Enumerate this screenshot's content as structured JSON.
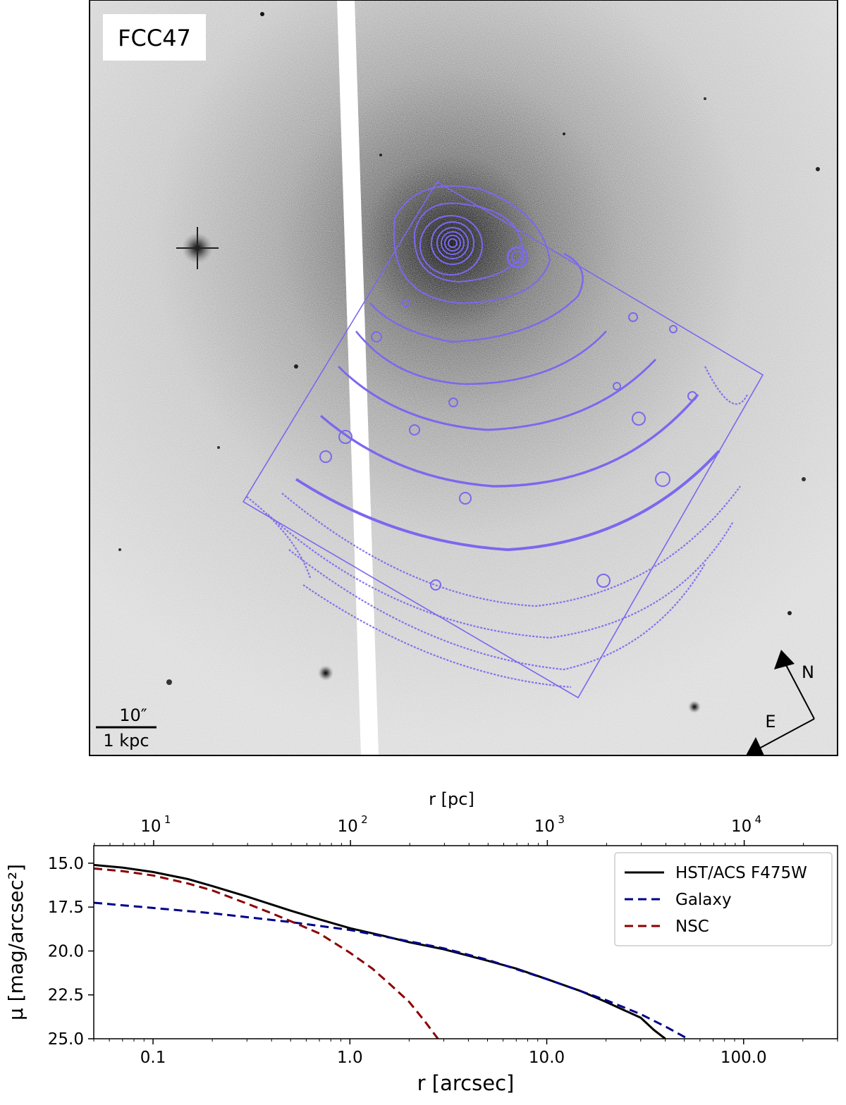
{
  "image_panel": {
    "galaxy_label": "FCC47",
    "scale_bar_top": "10″",
    "scale_bar_bottom": "1 kpc",
    "compass_north": "N",
    "compass_east": "E",
    "contour_color": "#7b68ee"
  },
  "chart_data": {
    "type": "line",
    "xlabel": "r [arcsec]",
    "x2label": "r [pc]",
    "ylabel": "μ [mag/arcsec²]",
    "xscale": "log",
    "xlim": [
      0.05,
      300
    ],
    "ylim": [
      25.0,
      14.0
    ],
    "y_inverted": true,
    "x_ticks": [
      "0.1",
      "1.0",
      "10.0",
      "100.0"
    ],
    "x_tick_values": [
      0.1,
      1,
      10,
      100
    ],
    "x2_tick_values": [
      10,
      100,
      1000,
      10000
    ],
    "x2_ticks": [
      "10",
      "10",
      "10",
      "10"
    ],
    "x2_tick_exponents": [
      "1",
      "2",
      "3",
      "4"
    ],
    "y_ticks": [
      "15.0",
      "17.5",
      "20.0",
      "22.5",
      "25.0"
    ],
    "y_tick_values": [
      15.0,
      17.5,
      20.0,
      22.5,
      25.0
    ],
    "legend_position": "upper-right",
    "series": [
      {
        "name": "HST/ACS F475W",
        "color": "#000000",
        "style": "solid",
        "x": [
          0.05,
          0.07,
          0.1,
          0.15,
          0.2,
          0.3,
          0.5,
          0.7,
          1.0,
          1.5,
          2,
          3,
          5,
          7,
          10,
          15,
          20,
          25,
          30,
          35,
          40
        ],
        "y": [
          15.1,
          15.25,
          15.5,
          15.9,
          16.3,
          16.9,
          17.7,
          18.2,
          18.7,
          19.15,
          19.5,
          19.9,
          20.55,
          21.0,
          21.6,
          22.3,
          22.9,
          23.4,
          23.8,
          24.5,
          25.0
        ]
      },
      {
        "name": "Galaxy",
        "color": "#00008b",
        "style": "dashed",
        "x": [
          0.05,
          0.1,
          0.2,
          0.5,
          1.0,
          2,
          3,
          5,
          10,
          20,
          30,
          40,
          52
        ],
        "y": [
          17.25,
          17.55,
          17.85,
          18.35,
          18.8,
          19.45,
          19.85,
          20.5,
          21.6,
          22.8,
          23.6,
          24.3,
          25.0
        ]
      },
      {
        "name": "NSC",
        "color": "#8b0000",
        "style": "dashed",
        "x": [
          0.05,
          0.07,
          0.1,
          0.15,
          0.2,
          0.3,
          0.4,
          0.5,
          0.7,
          1.0,
          1.3,
          1.6,
          2.0,
          2.4,
          2.8
        ],
        "y": [
          15.3,
          15.45,
          15.7,
          16.15,
          16.55,
          17.3,
          17.85,
          18.3,
          19.0,
          20.1,
          21.0,
          21.9,
          22.9,
          24.0,
          25.0
        ]
      }
    ]
  }
}
